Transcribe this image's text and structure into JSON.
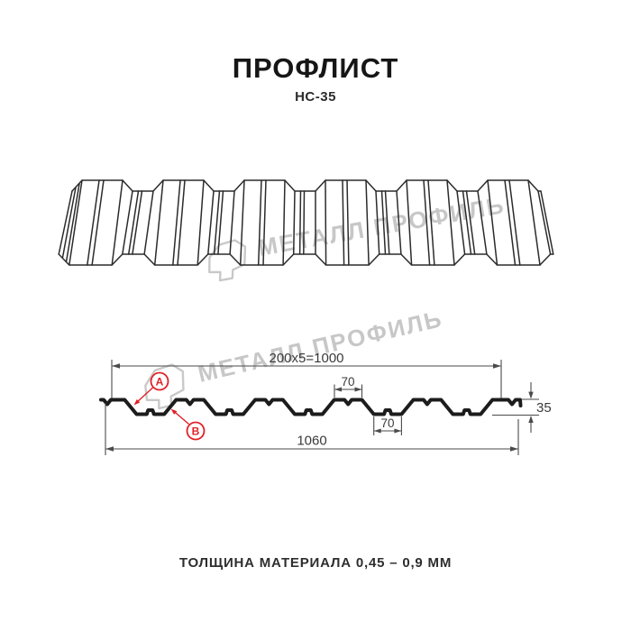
{
  "header": {
    "title": "ПРОФЛИСТ",
    "subtitle": "НС-35"
  },
  "watermark": {
    "brand": "МЕТАЛЛ ПРОФИЛЬ"
  },
  "cross_section": {
    "dims": {
      "coverage": "200x5=1000",
      "flange_top": "70",
      "valley_bottom": "70",
      "height": "35",
      "overall": "1060"
    },
    "markers": {
      "a": "A",
      "b": "B"
    }
  },
  "footer": {
    "thickness": "ТОЛЩИНА МАТЕРИАЛА 0,45 – 0,9 ММ"
  },
  "specs": {
    "profile": "НС-35",
    "coverage_width_mm": 1000,
    "overall_width_mm": 1060,
    "rib_pitch_mm": 200,
    "ribs_per_sheet": 5,
    "profile_height_mm": 35,
    "rib_top_width_mm": 70,
    "rib_bottom_width_mm": 70,
    "thickness_min_mm": "0,45",
    "thickness_max_mm": "0,9"
  },
  "colors": {
    "line": "#2b2b2b",
    "section_line": "#1c1c1c",
    "dim_line": "#4a4a4a",
    "accent_red": "#e02127",
    "watermark": "#c7c7c7",
    "background": "#ffffff"
  }
}
